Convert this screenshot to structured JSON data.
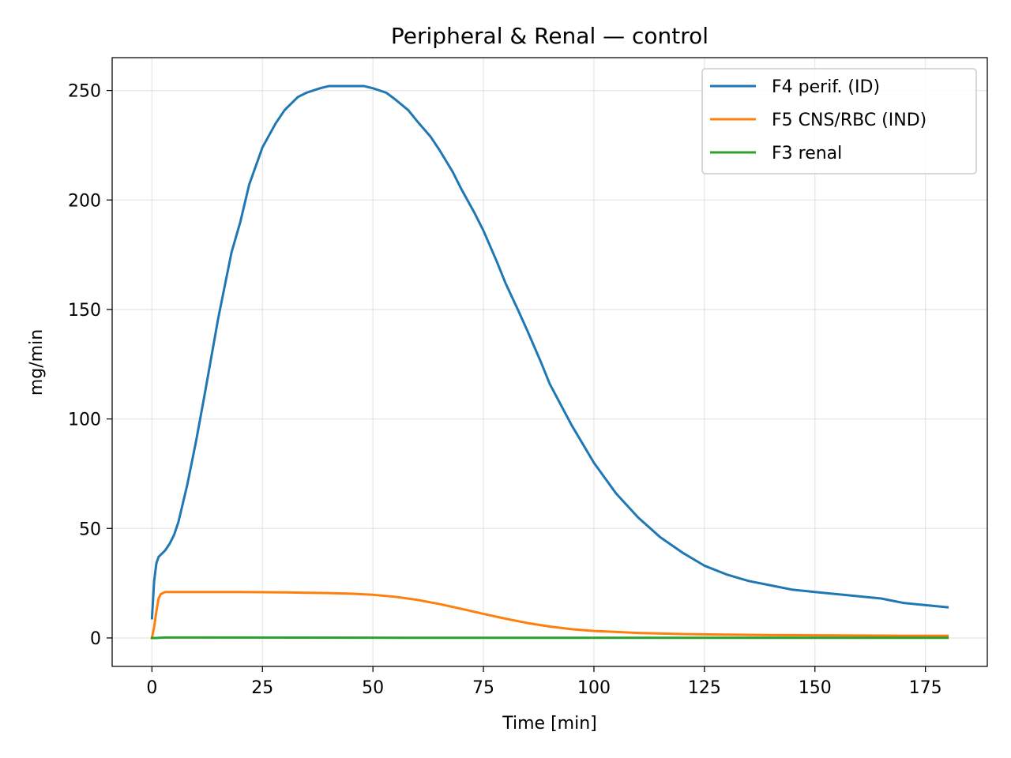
{
  "chart_data": {
    "type": "line",
    "title": "Peripheral & Renal — control",
    "xlabel": "Time [min]",
    "ylabel": "mg/min",
    "xlim": [
      -9,
      189
    ],
    "ylim": [
      -13,
      265
    ],
    "xticks": [
      0,
      25,
      50,
      75,
      100,
      125,
      150,
      175
    ],
    "yticks": [
      0,
      50,
      100,
      150,
      200,
      250
    ],
    "grid": true,
    "legend_position": "top-right",
    "series": [
      {
        "name": "F4 perif. (ID)",
        "color": "#1f77b4",
        "x": [
          0,
          0.5,
          1,
          1.5,
          2,
          3,
          4,
          5,
          6,
          8,
          10,
          12,
          15,
          18,
          20,
          22,
          25,
          28,
          30,
          33,
          35,
          38,
          40,
          43,
          45,
          48,
          50,
          53,
          55,
          58,
          60,
          63,
          65,
          68,
          70,
          73,
          75,
          78,
          80,
          83,
          85,
          88,
          90,
          95,
          100,
          105,
          110,
          115,
          120,
          125,
          130,
          135,
          140,
          145,
          150,
          155,
          160,
          165,
          170,
          175,
          180
        ],
        "y": [
          9,
          26,
          34,
          37,
          38,
          40,
          43,
          47,
          53,
          70,
          90,
          112,
          146,
          176,
          190,
          207,
          224,
          235,
          241,
          247,
          249,
          251,
          252,
          252,
          252,
          252,
          251,
          249,
          246,
          241,
          236,
          229,
          223,
          213,
          205,
          194,
          186,
          172,
          162,
          149,
          140,
          126,
          116,
          97,
          80,
          66,
          55,
          46,
          39,
          33,
          29,
          26,
          24,
          22,
          21,
          20,
          19,
          18,
          16,
          15,
          14
        ]
      },
      {
        "name": "F5 CNS/RBC (IND)",
        "color": "#ff7f0e",
        "x": [
          0,
          0.5,
          1,
          1.5,
          2,
          3,
          5,
          10,
          20,
          30,
          40,
          45,
          50,
          55,
          60,
          65,
          70,
          75,
          80,
          85,
          90,
          95,
          100,
          110,
          120,
          130,
          140,
          150,
          160,
          170,
          180
        ],
        "y": [
          0,
          5,
          12,
          18,
          20,
          21,
          21,
          21,
          21,
          20.8,
          20.5,
          20.2,
          19.7,
          18.8,
          17.4,
          15.5,
          13.3,
          11,
          8.8,
          6.8,
          5.2,
          4,
          3.2,
          2.3,
          1.8,
          1.5,
          1.3,
          1.2,
          1.1,
          1.0,
          1.0
        ]
      },
      {
        "name": "F3 renal",
        "color": "#2ca02c",
        "x": [
          0,
          1,
          2,
          3,
          10,
          50,
          100,
          150,
          180
        ],
        "y": [
          0,
          0,
          0.1,
          0.2,
          0.2,
          0.1,
          0.05,
          0.05,
          0.05
        ]
      }
    ]
  }
}
